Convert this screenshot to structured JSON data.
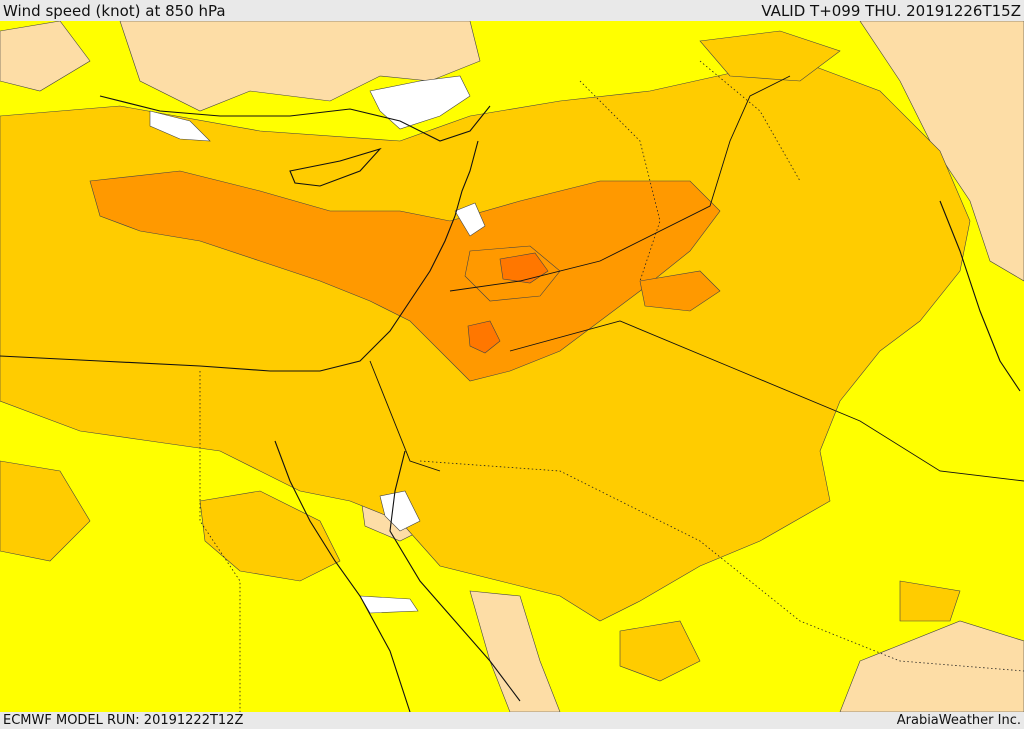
{
  "header": {
    "title": "Wind speed (knot) at 850 hPa",
    "valid": "VALID T+099 THU. 20191226T15Z"
  },
  "footer": {
    "model_run": "ECMWF MODEL RUN: 20191222T12Z",
    "credit": "ArabiaWeather Inc."
  },
  "colors": {
    "band_lightest": "#fddda6",
    "band_yellow": "#ffff00",
    "band_gold": "#ffcc00",
    "band_orange": "#ff9900",
    "band_deep_orange": "#ff7700",
    "low_wind_white": "#ffffff",
    "coastline": "#111111"
  }
}
